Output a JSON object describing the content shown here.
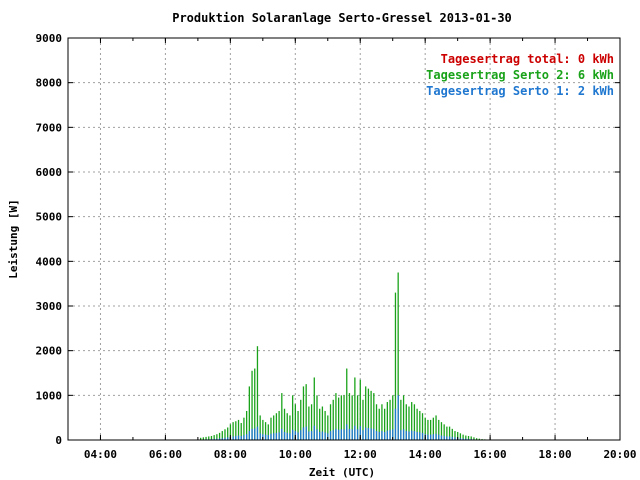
{
  "chart_data": {
    "type": "bar",
    "title": "Produktion Solaranlage Serto-Gressel 2013-01-30",
    "xlabel": "Zeit (UTC)",
    "ylabel": "Leistung [W]",
    "xlim": [
      "03:00",
      "20:00"
    ],
    "ylim": [
      0,
      9000
    ],
    "x_ticks": [
      "04:00",
      "06:00",
      "08:00",
      "10:00",
      "12:00",
      "14:00",
      "16:00",
      "18:00",
      "20:00"
    ],
    "y_ticks": [
      0,
      1000,
      2000,
      3000,
      4000,
      5000,
      6000,
      7000,
      8000,
      9000
    ],
    "grid": true,
    "legend_position": "top-right",
    "legend": [
      {
        "label": "Tagesertrag total: 0 kWh",
        "color": "#cc0000"
      },
      {
        "label": "Tagesertrag Serto 2: 6 kWh",
        "color": "#1aa31a"
      },
      {
        "label": "Tagesertrag Serto 1: 2 kWh",
        "color": "#1f77d0"
      }
    ],
    "x": [
      "07:05",
      "07:10",
      "07:15",
      "07:20",
      "07:25",
      "07:30",
      "07:35",
      "07:40",
      "07:45",
      "07:50",
      "07:55",
      "08:00",
      "08:05",
      "08:10",
      "08:15",
      "08:20",
      "08:25",
      "08:30",
      "08:35",
      "08:40",
      "08:45",
      "08:50",
      "08:55",
      "09:00",
      "09:05",
      "09:10",
      "09:15",
      "09:20",
      "09:25",
      "09:30",
      "09:35",
      "09:40",
      "09:45",
      "09:50",
      "09:55",
      "10:00",
      "10:05",
      "10:10",
      "10:15",
      "10:20",
      "10:25",
      "10:30",
      "10:35",
      "10:40",
      "10:45",
      "10:50",
      "10:55",
      "11:00",
      "11:05",
      "11:10",
      "11:15",
      "11:20",
      "11:25",
      "11:30",
      "11:35",
      "11:40",
      "11:45",
      "11:50",
      "11:55",
      "12:00",
      "12:05",
      "12:10",
      "12:15",
      "12:20",
      "12:25",
      "12:30",
      "12:35",
      "12:40",
      "12:45",
      "12:50",
      "12:55",
      "13:00",
      "13:05",
      "13:10",
      "13:15",
      "13:20",
      "13:25",
      "13:30",
      "13:35",
      "13:40",
      "13:45",
      "13:50",
      "13:55",
      "14:00",
      "14:05",
      "14:10",
      "14:15",
      "14:20",
      "14:25",
      "14:30",
      "14:35",
      "14:40",
      "14:45",
      "14:50",
      "14:55",
      "15:00",
      "15:05",
      "15:10",
      "15:15",
      "15:20",
      "15:25",
      "15:30",
      "15:35",
      "15:40",
      "15:45",
      "15:50",
      "15:55"
    ],
    "series": [
      {
        "color": "#1aa31a",
        "values": [
          50,
          60,
          70,
          80,
          90,
          110,
          130,
          160,
          200,
          240,
          280,
          350,
          400,
          420,
          450,
          380,
          500,
          650,
          1200,
          1550,
          1600,
          2100,
          550,
          450,
          400,
          350,
          500,
          550,
          600,
          650,
          1050,
          700,
          600,
          550,
          1000,
          800,
          650,
          900,
          1200,
          1250,
          750,
          800,
          1400,
          1000,
          700,
          750,
          650,
          550,
          800,
          900,
          1050,
          950,
          1000,
          1000,
          1600,
          1050,
          1000,
          1400,
          1000,
          1350,
          900,
          1200,
          1150,
          1100,
          1050,
          800,
          700,
          800,
          700,
          850,
          900,
          1000,
          3300,
          3750,
          900,
          1000,
          800,
          750,
          850,
          800,
          700,
          650,
          600,
          500,
          450,
          450,
          500,
          550,
          450,
          400,
          350,
          300,
          300,
          250,
          200,
          180,
          150,
          120,
          100,
          90,
          80,
          60,
          40,
          30,
          20,
          15,
          10
        ]
      },
      {
        "color": "#1f77d0",
        "values": [
          10,
          10,
          15,
          15,
          20,
          25,
          30,
          35,
          40,
          50,
          60,
          70,
          80,
          90,
          100,
          90,
          110,
          130,
          200,
          250,
          260,
          300,
          150,
          130,
          120,
          110,
          140,
          150,
          160,
          170,
          250,
          180,
          160,
          150,
          230,
          200,
          170,
          220,
          280,
          300,
          190,
          200,
          320,
          240,
          180,
          190,
          170,
          150,
          200,
          220,
          250,
          230,
          240,
          240,
          350,
          250,
          240,
          320,
          240,
          310,
          220,
          280,
          270,
          260,
          250,
          200,
          180,
          200,
          180,
          210,
          220,
          240,
          700,
          1000,
          220,
          240,
          200,
          190,
          210,
          200,
          180,
          170,
          160,
          130,
          120,
          120,
          130,
          140,
          120,
          100,
          90,
          80,
          80,
          70,
          60,
          50,
          40,
          35,
          30,
          25,
          20,
          15,
          10,
          8,
          6,
          4,
          2
        ]
      }
    ]
  }
}
